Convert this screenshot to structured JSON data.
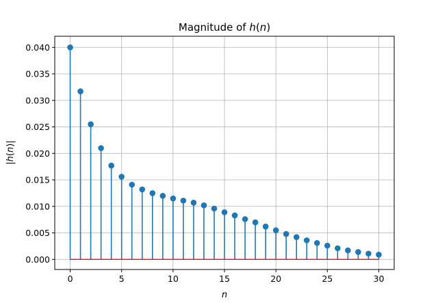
{
  "chart_data": {
    "type": "stem",
    "title": {
      "prefix": "Magnitude of ",
      "var": "h",
      "open": "(",
      "arg": "n",
      "close": ")"
    },
    "xlabel": "n",
    "ylabel": {
      "bar_left": "|",
      "var": "h",
      "open": "(",
      "arg": "n",
      "close": ")",
      "bar_right": "|"
    },
    "xlim": [
      -1.5,
      31.5
    ],
    "ylim": [
      -0.0019,
      0.0421
    ],
    "xticks": [
      0,
      5,
      10,
      15,
      20,
      25,
      30
    ],
    "xtick_labels": [
      "0",
      "5",
      "10",
      "15",
      "20",
      "25",
      "30"
    ],
    "yticks": [
      0.0,
      0.005,
      0.01,
      0.015,
      0.02,
      0.025,
      0.03,
      0.035,
      0.04
    ],
    "ytick_labels": [
      "0.000",
      "0.005",
      "0.010",
      "0.015",
      "0.020",
      "0.025",
      "0.030",
      "0.035",
      "0.040"
    ],
    "grid": true,
    "x": [
      0,
      1,
      2,
      3,
      4,
      5,
      6,
      7,
      8,
      9,
      10,
      11,
      12,
      13,
      14,
      15,
      16,
      17,
      18,
      19,
      20,
      21,
      22,
      23,
      24,
      25,
      26,
      27,
      28,
      29,
      30
    ],
    "values": [
      0.04,
      0.0317,
      0.0255,
      0.021,
      0.0177,
      0.0156,
      0.0141,
      0.0132,
      0.0125,
      0.012,
      0.0115,
      0.0111,
      0.0107,
      0.0102,
      0.0096,
      0.0089,
      0.0083,
      0.0076,
      0.007,
      0.0062,
      0.0055,
      0.0048,
      0.0042,
      0.0036,
      0.0031,
      0.0026,
      0.0021,
      0.0017,
      0.0014,
      0.0011,
      0.0009
    ],
    "colors": {
      "stem": "#1f77b4",
      "marker": "#1f77b4",
      "baseline": "#d62728",
      "grid": "#b0b0b0"
    }
  }
}
